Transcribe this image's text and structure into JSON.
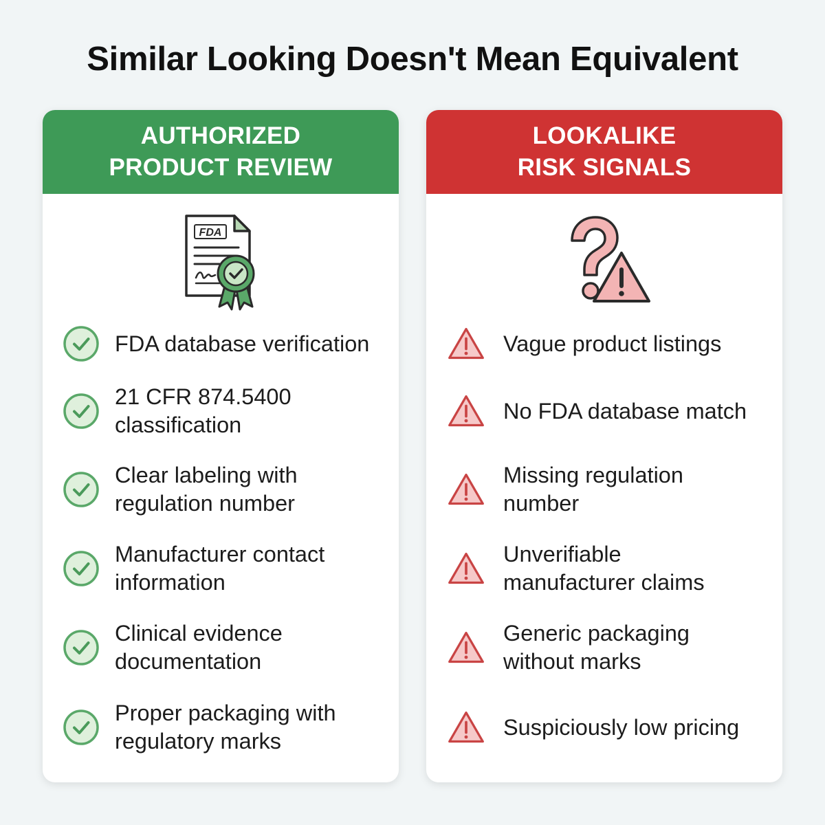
{
  "title": "Similar Looking Doesn't Mean Equivalent",
  "left_panel": {
    "header_line1": "AUTHORIZED",
    "header_line2": "PRODUCT REVIEW",
    "illustration_icon": "fda-certificate-icon",
    "document_badge_text": "FDA",
    "bullet_icon": "check-circle-icon",
    "accent_color": "#3e9a57",
    "items": [
      {
        "line1": "FDA database verification",
        "line2": ""
      },
      {
        "line1": "21 CFR 874.5400",
        "line2": "classification"
      },
      {
        "line1": "Clear labeling with",
        "line2": "regulation number"
      },
      {
        "line1": "Manufacturer contact",
        "line2": "information"
      },
      {
        "line1": "Clinical evidence",
        "line2": "documentation"
      },
      {
        "line1": "Proper packaging with",
        "line2": "regulatory marks"
      }
    ]
  },
  "right_panel": {
    "header_line1": "LOOKALIKE",
    "header_line2": "RISK SIGNALS",
    "illustration_icon": "question-warning-icon",
    "bullet_icon": "warning-triangle-icon",
    "accent_color": "#cf3333",
    "items": [
      {
        "line1": "Vague product listings",
        "line2": ""
      },
      {
        "line1": "No FDA database match",
        "line2": ""
      },
      {
        "line1": "Missing regulation",
        "line2": "number"
      },
      {
        "line1": "Unverifiable",
        "line2": "manufacturer claims"
      },
      {
        "line1": "Generic packaging",
        "line2": "without marks"
      },
      {
        "line1": "Suspiciously low pricing",
        "line2": ""
      }
    ]
  }
}
